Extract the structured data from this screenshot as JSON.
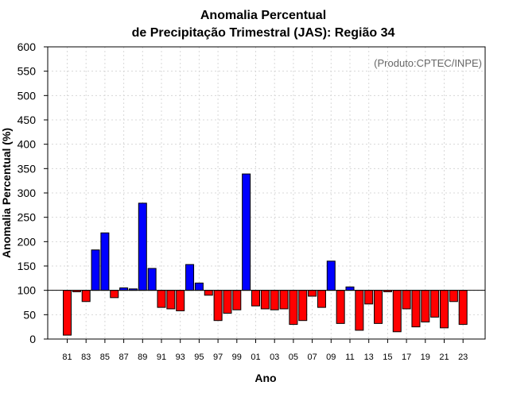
{
  "chart_data": {
    "type": "bar",
    "title": "Anomalia Percentual",
    "subtitle": "de Precipitação Trimestral (JAS): Região 34",
    "xlabel": "Ano",
    "ylabel": "Anomalia Percentual (%)",
    "source": "(Produto:CPTEC/INPE)",
    "ylim": [
      0,
      600
    ],
    "yticks": [
      0,
      50,
      100,
      150,
      200,
      250,
      300,
      350,
      400,
      450,
      500,
      550,
      600
    ],
    "baseline": 100,
    "grid": true,
    "colors": {
      "above": "#0000ff",
      "below": "#ff0000",
      "edge": "#000000"
    },
    "categories": [
      "81",
      "82",
      "83",
      "84",
      "85",
      "86",
      "87",
      "88",
      "89",
      "90",
      "91",
      "92",
      "93",
      "94",
      "95",
      "96",
      "97",
      "98",
      "99",
      "00",
      "01",
      "02",
      "03",
      "04",
      "05",
      "06",
      "07",
      "08",
      "09",
      "10",
      "11",
      "12",
      "13",
      "14",
      "15",
      "16",
      "17",
      "18",
      "19",
      "20",
      "21",
      "22",
      "23"
    ],
    "xtick_labels": [
      "81",
      "83",
      "85",
      "87",
      "89",
      "91",
      "93",
      "95",
      "97",
      "99",
      "01",
      "03",
      "05",
      "07",
      "09",
      "11",
      "13",
      "15",
      "17",
      "19",
      "21",
      "23"
    ],
    "values": [
      8,
      97,
      77,
      183,
      218,
      85,
      105,
      103,
      279,
      145,
      65,
      62,
      58,
      153,
      115,
      90,
      38,
      53,
      60,
      339,
      68,
      62,
      60,
      62,
      30,
      38,
      88,
      65,
      160,
      32,
      107,
      18,
      72,
      32,
      97,
      15,
      62,
      25,
      35,
      45,
      23,
      77,
      30
    ]
  }
}
